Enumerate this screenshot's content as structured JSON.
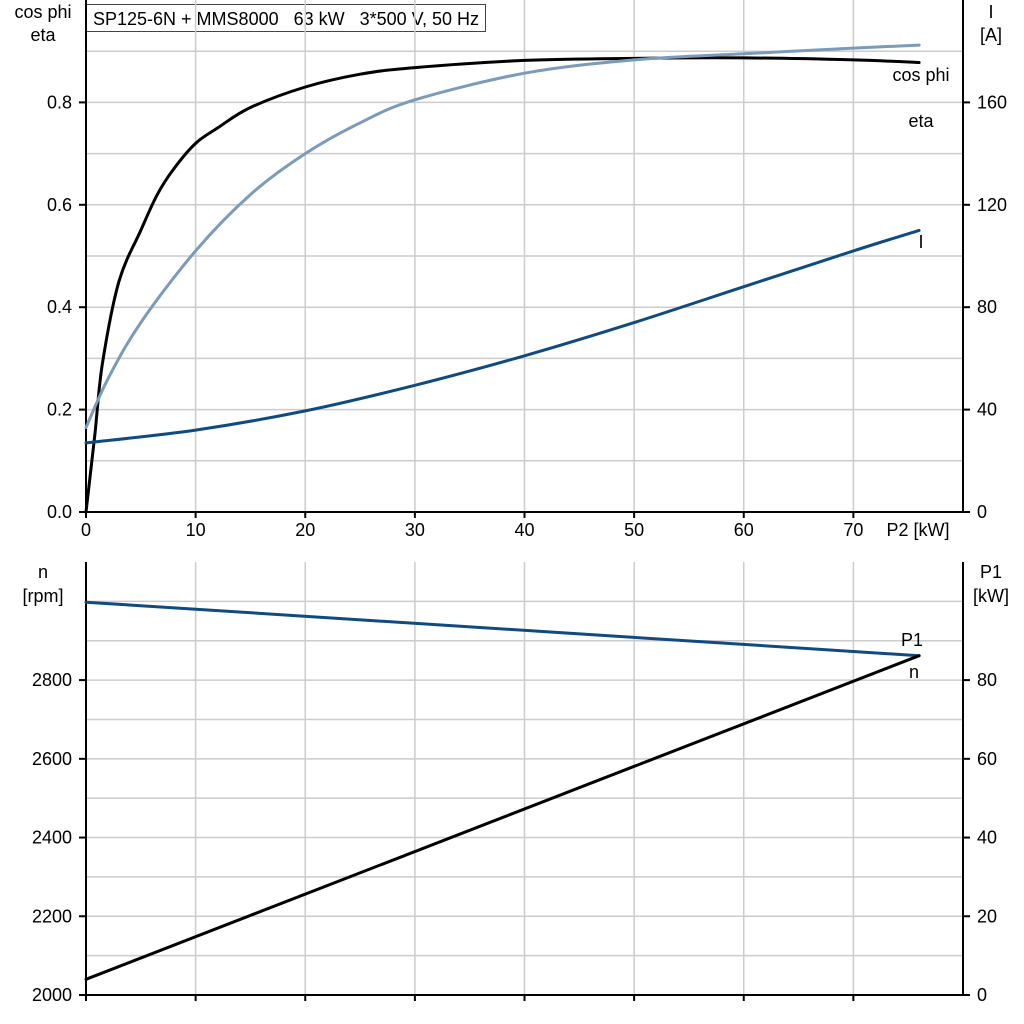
{
  "title": "SP125-6N + MMS8000   63 kW   3*500 V, 50 Hz",
  "colors": {
    "eta": "#000000",
    "cos_phi": "#7A9BBA",
    "current": "#0F4A80",
    "speed": "#0F4A80",
    "p1": "#000000",
    "grid": "#cccccc"
  },
  "chart_data": [
    {
      "type": "line",
      "grid": true,
      "xlabel": "P2 [kW]",
      "xlim": [
        0,
        80
      ],
      "xticks": [
        0,
        10,
        20,
        30,
        40,
        50,
        60,
        70
      ],
      "ylabel_left": [
        "cos phi",
        "eta"
      ],
      "ylim_left": [
        0,
        1.0
      ],
      "yticks_left": [
        0.0,
        0.2,
        0.4,
        0.6,
        0.8
      ],
      "ylabel_right": [
        "I",
        "[A]"
      ],
      "ylim_right": [
        0,
        200
      ],
      "yticks_right": [
        0,
        40,
        80,
        120,
        160
      ],
      "series": [
        {
          "name": "eta",
          "axis": "left",
          "color": "#000000",
          "x": [
            0,
            0.8,
            1.5,
            3,
            5,
            6.5,
            8,
            10,
            12,
            15,
            20,
            25,
            30,
            40,
            50,
            60,
            70,
            76
          ],
          "y": [
            0.0,
            0.15,
            0.29,
            0.45,
            0.55,
            0.62,
            0.67,
            0.72,
            0.75,
            0.79,
            0.83,
            0.855,
            0.868,
            0.882,
            0.886,
            0.887,
            0.883,
            0.878
          ]
        },
        {
          "name": "cos phi",
          "axis": "left",
          "color": "#7A9BBA",
          "x": [
            0,
            2,
            5,
            10,
            15,
            20,
            25,
            30,
            40,
            50,
            60,
            70,
            76
          ],
          "y": [
            0.165,
            0.26,
            0.37,
            0.51,
            0.62,
            0.7,
            0.76,
            0.805,
            0.857,
            0.883,
            0.895,
            0.906,
            0.912
          ]
        },
        {
          "name": "I",
          "axis": "right",
          "color": "#0F4A80",
          "x": [
            0,
            10,
            20,
            30,
            40,
            50,
            60,
            70,
            76
          ],
          "y": [
            27,
            32,
            39.5,
            49.5,
            61,
            74,
            88,
            102,
            110
          ]
        }
      ]
    },
    {
      "type": "line",
      "grid": true,
      "xlim": [
        0,
        80
      ],
      "xticks": [
        0,
        10,
        20,
        30,
        40,
        50,
        60,
        70
      ],
      "ylabel_left": [
        "n",
        "[rpm]"
      ],
      "ylim_left": [
        2000,
        3100
      ],
      "yticks_left": [
        2000,
        2200,
        2400,
        2600,
        2800
      ],
      "ylabel_right": [
        "P1",
        "[kW]"
      ],
      "ylim_right": [
        0,
        110
      ],
      "yticks_right": [
        0,
        20,
        40,
        60,
        80
      ],
      "series": [
        {
          "name": "n",
          "axis": "left",
          "color": "#0F4A80",
          "x": [
            0,
            76
          ],
          "y": [
            2998,
            2862
          ]
        },
        {
          "name": "P1",
          "axis": "right",
          "color": "#000000",
          "x": [
            0,
            76
          ],
          "y": [
            4.0,
            86.2
          ]
        }
      ]
    }
  ]
}
